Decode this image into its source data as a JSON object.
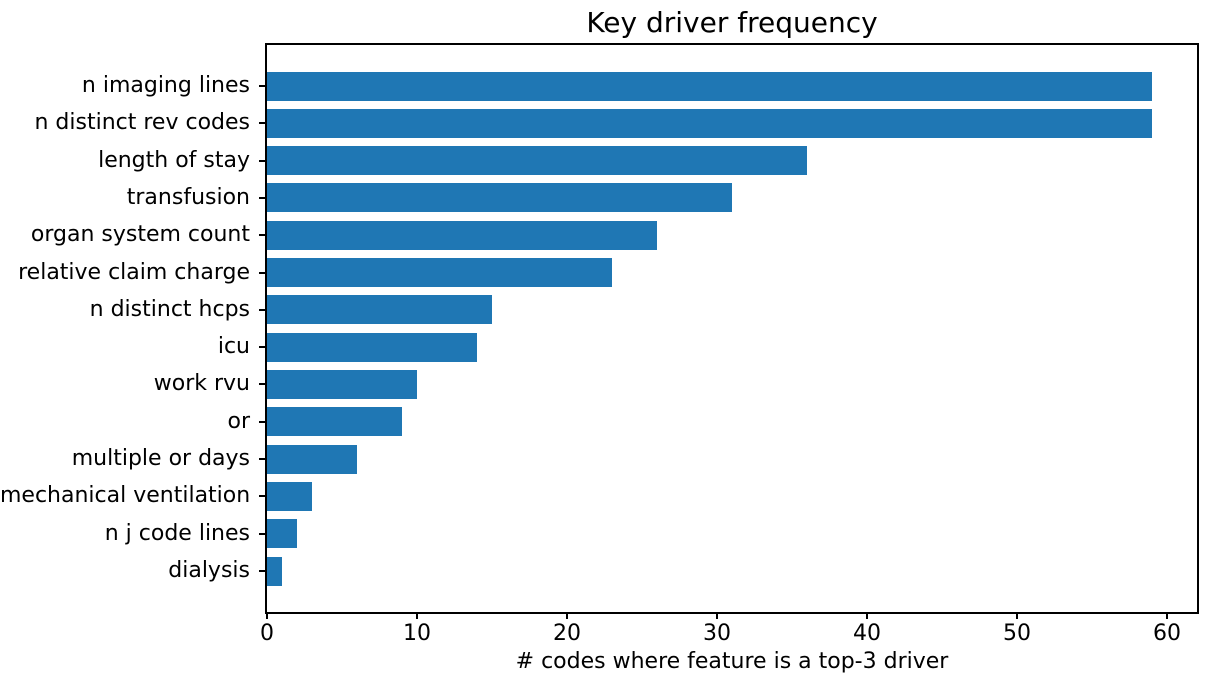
{
  "chart_data": {
    "type": "bar",
    "orientation": "horizontal",
    "title": "Key driver frequency",
    "xlabel": "# codes where feature is a top-3 driver",
    "ylabel": "",
    "categories": [
      "n imaging lines",
      "n distinct rev codes",
      "length of stay",
      "transfusion",
      "organ system count",
      "relative claim charge",
      "n distinct hcps",
      "icu",
      "work rvu",
      "or",
      "multiple or days",
      "mechanical ventilation",
      "n j code lines",
      "dialysis"
    ],
    "values": [
      59,
      59,
      36,
      31,
      26,
      23,
      15,
      14,
      10,
      9,
      6,
      3,
      2,
      1
    ],
    "xticks": [
      0,
      10,
      20,
      30,
      40,
      50,
      60
    ],
    "xlim": [
      0,
      62
    ],
    "grid": false,
    "legend": null,
    "bar_color": "#1f77b4",
    "axis_color": "#000000",
    "background_color": "#ffffff"
  }
}
